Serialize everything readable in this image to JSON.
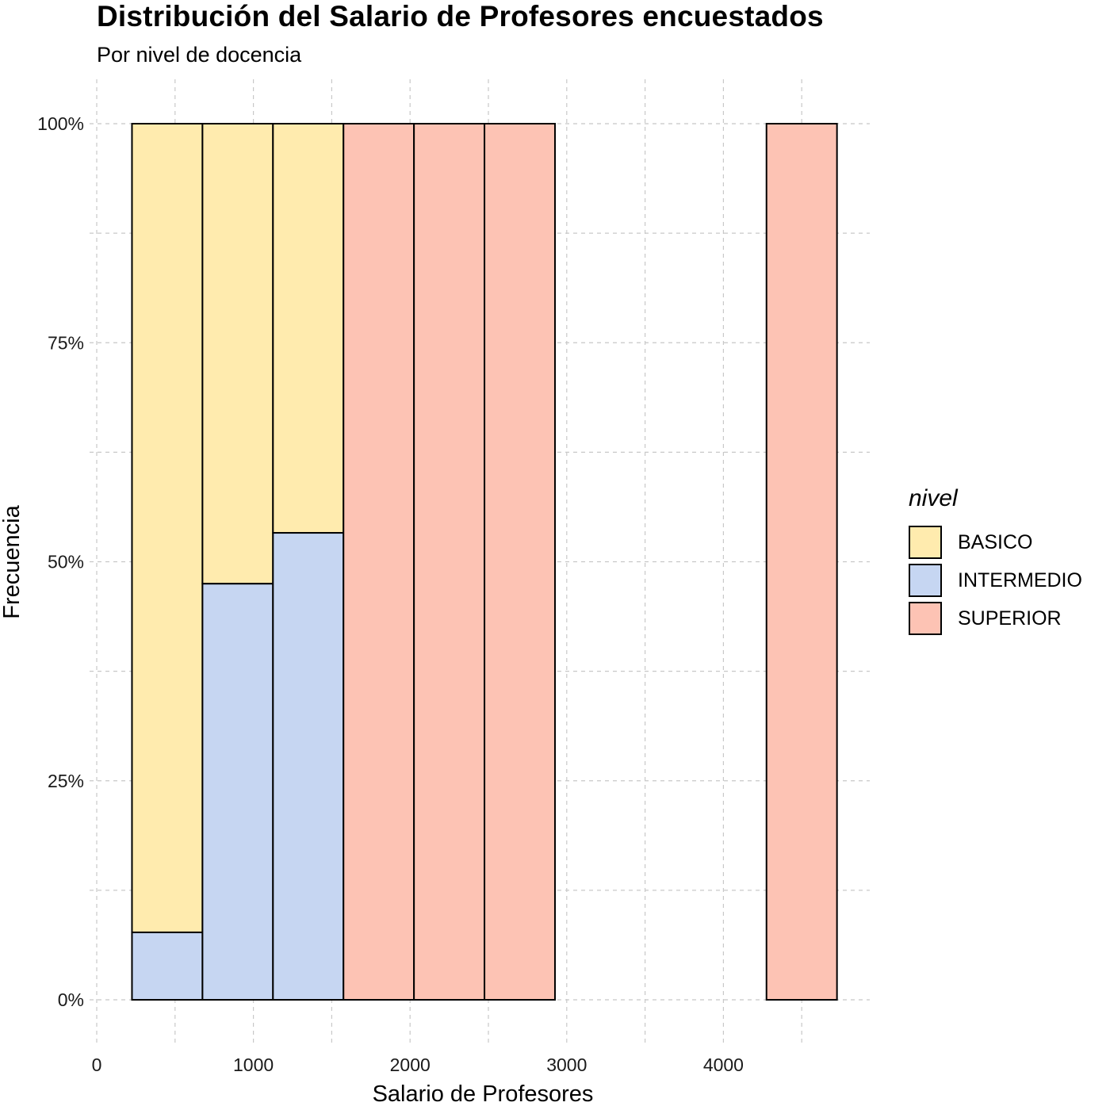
{
  "chart_data": {
    "type": "bar",
    "title": "Distribución del Salario de Profesores encuestados",
    "subtitle": "Por nivel de docencia",
    "xlabel": "Salario de Profesores",
    "ylabel": "Frecuencia",
    "xlim": [
      0,
      4900
    ],
    "ylim": [
      0,
      1
    ],
    "x_ticks": [
      0,
      1000,
      2000,
      3000,
      4000
    ],
    "x_tick_labels": [
      "0",
      "1000",
      "2000",
      "3000",
      "4000"
    ],
    "y_ticks": [
      0,
      0.25,
      0.5,
      0.75,
      1
    ],
    "y_tick_labels": [
      "0%",
      "25%",
      "50%",
      "75%",
      "100%"
    ],
    "grid": true,
    "legend_position": "right",
    "legend_title": "nivel",
    "series": [
      {
        "name": "BASICO",
        "color": "#FFEBAE"
      },
      {
        "name": "INTERMEDIO",
        "color": "#C6D6F2"
      },
      {
        "name": "SUPERIOR",
        "color": "#FDC3B4"
      }
    ],
    "bins": [
      {
        "x0": 225,
        "x1": 675,
        "fractions": {
          "INTERMEDIO": 0.077,
          "BASICO": 0.923
        }
      },
      {
        "x0": 675,
        "x1": 1125,
        "fractions": {
          "INTERMEDIO": 0.475,
          "BASICO": 0.525
        }
      },
      {
        "x0": 1125,
        "x1": 1575,
        "fractions": {
          "INTERMEDIO": 0.533,
          "BASICO": 0.467
        }
      },
      {
        "x0": 1575,
        "x1": 2025,
        "fractions": {
          "SUPERIOR": 1.0
        }
      },
      {
        "x0": 2025,
        "x1": 2475,
        "fractions": {
          "SUPERIOR": 1.0
        }
      },
      {
        "x0": 2475,
        "x1": 2925,
        "fractions": {
          "SUPERIOR": 1.0
        }
      },
      {
        "x0": 4275,
        "x1": 4725,
        "fractions": {
          "SUPERIOR": 1.0
        }
      }
    ]
  }
}
